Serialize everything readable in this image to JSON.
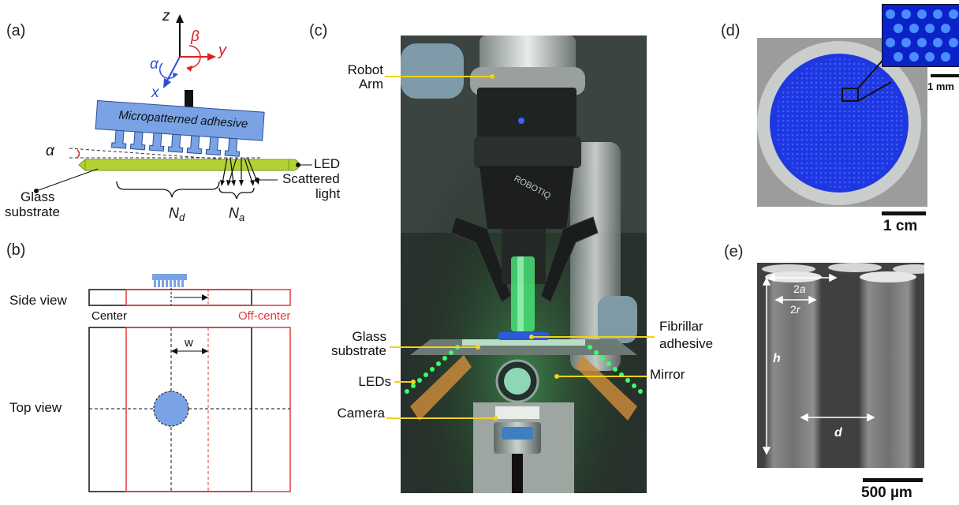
{
  "panels": {
    "a": {
      "label": "(a)",
      "axis_z": "z",
      "axis_y": "y",
      "axis_x": "x",
      "alpha": "α",
      "beta": "β",
      "adhesive": "Micropatterned adhesive",
      "alpha_tilt": "α",
      "led": "LED",
      "glass": "Glass",
      "substrate": "substrate",
      "scattered_1": "Scattered",
      "scattered_2": "light",
      "nd": "N",
      "nd_sub": "d",
      "na": "N",
      "na_sub": "a"
    },
    "b": {
      "label": "(b)",
      "side_view": "Side view",
      "top_view": "Top view",
      "center": "Center",
      "off_center": "Off-center",
      "w": "w"
    },
    "c": {
      "label": "(c)",
      "robot_1": "Robot",
      "robot_2": "Arm",
      "glass_1": "Glass",
      "glass_2": "substrate",
      "leds": "LEDs",
      "camera": "Camera",
      "fibrillar_1": "Fibrillar",
      "fibrillar_2": "adhesive",
      "mirror": "Mirror",
      "gripper_brand": "ROBOTIQ"
    },
    "d": {
      "label": "(d)",
      "inset_scale": "1 mm",
      "scale": "1 cm"
    },
    "e": {
      "label": "(e)",
      "two_a": "2",
      "two_a_it": "a",
      "two_r": "2",
      "two_r_it": "r",
      "h": "h",
      "d": "d",
      "scale": "500 µm"
    }
  },
  "colors": {
    "adhesive_blue": "#7aa3e6",
    "glass_green": "#b3d334",
    "frame_red": "#e23a3a",
    "axis_blue": "#2f4fd8",
    "axis_red": "#e02020",
    "leader_yellow": "#f2d21a",
    "led_green": "#39ff6a"
  }
}
